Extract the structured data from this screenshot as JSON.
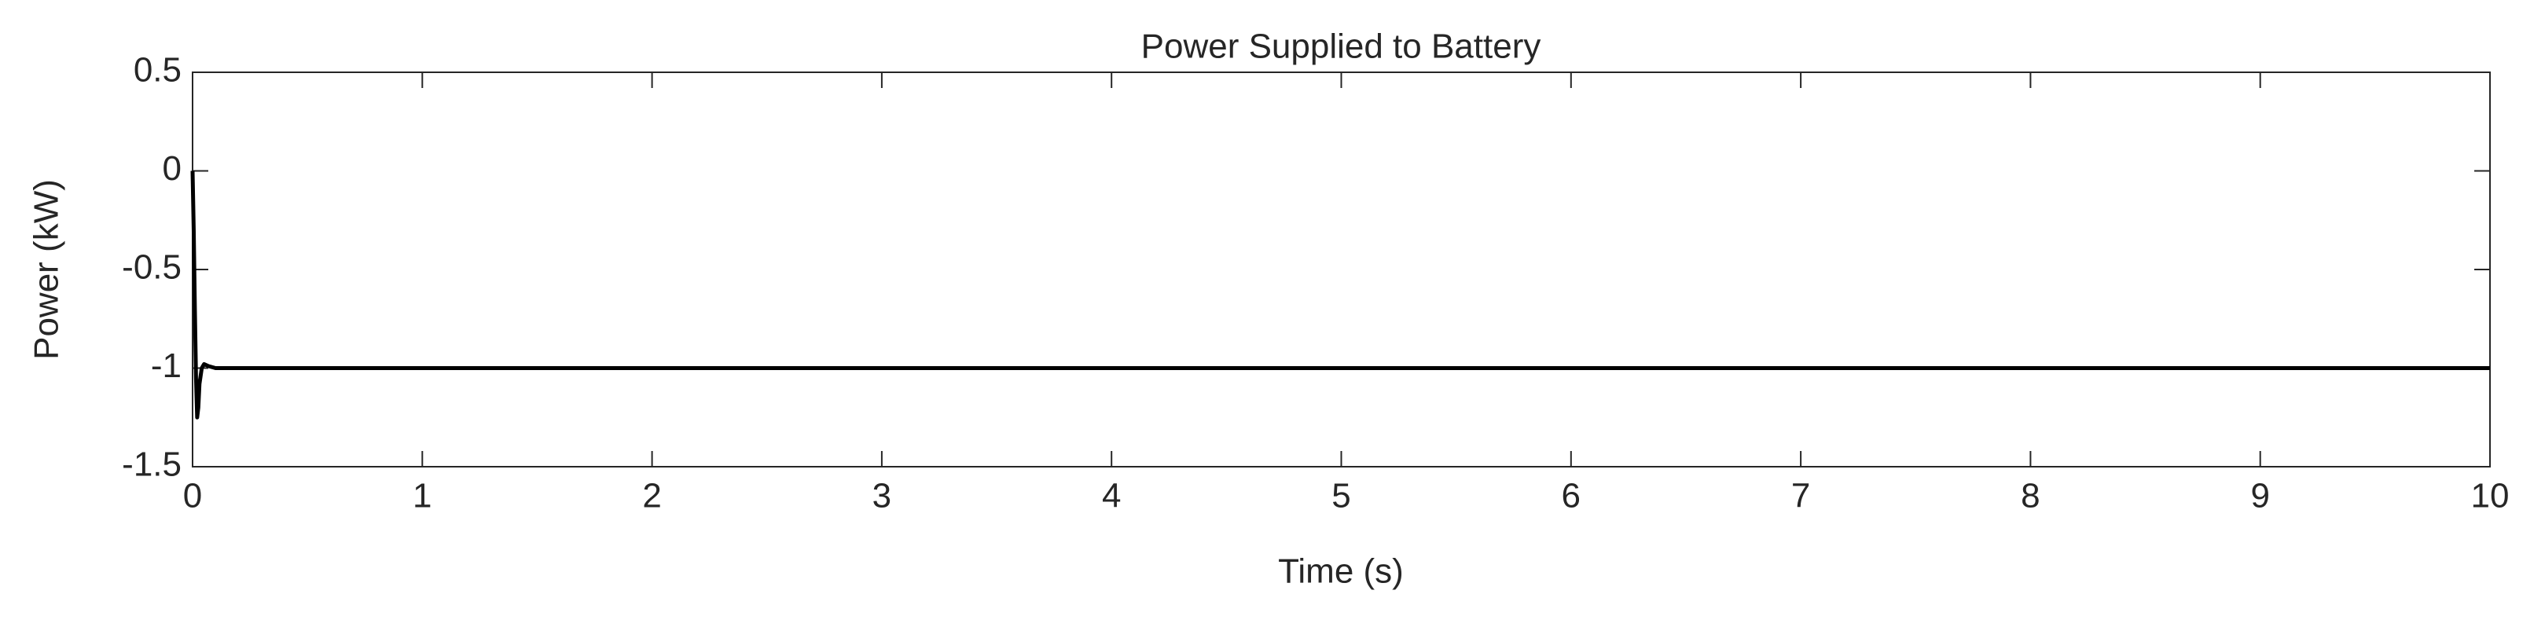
{
  "chart_data": {
    "type": "line",
    "title": "Power Supplied to Battery",
    "x_label": "Time (s)",
    "y_label": "Power (kW)",
    "series": [
      {
        "name": "Power",
        "color": "#000000",
        "x": [
          0,
          0.005,
          0.01,
          0.015,
          0.02,
          0.025,
          0.03,
          0.04,
          0.05,
          0.07,
          0.1,
          0.5,
          1,
          2,
          3,
          4,
          5,
          6,
          7,
          8,
          9,
          10
        ],
        "values": [
          0,
          -0.3,
          -0.7,
          -1.05,
          -1.25,
          -1.2,
          -1.08,
          -1.0,
          -0.98,
          -0.99,
          -1,
          -1,
          -1,
          -1,
          -1,
          -1,
          -1,
          -1,
          -1,
          -1,
          -1,
          -1
        ]
      }
    ],
    "xlim": [
      0,
      10
    ],
    "xticks": [
      0,
      1,
      2,
      3,
      4,
      5,
      6,
      7,
      8,
      9,
      10
    ],
    "ylim": [
      -1.5,
      0.5
    ],
    "yticks": [
      -1.5,
      -1,
      -0.5,
      0,
      0.5
    ]
  }
}
